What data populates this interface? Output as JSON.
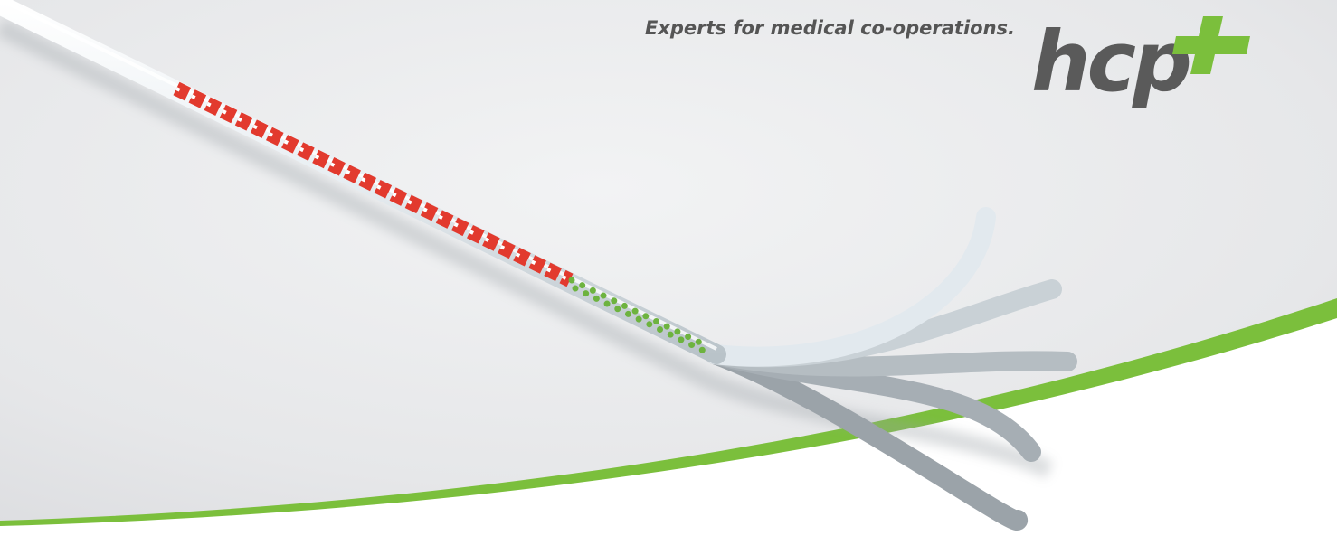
{
  "tagline": "Experts for medical co-operations.",
  "logo": {
    "text": "hcp"
  }
}
